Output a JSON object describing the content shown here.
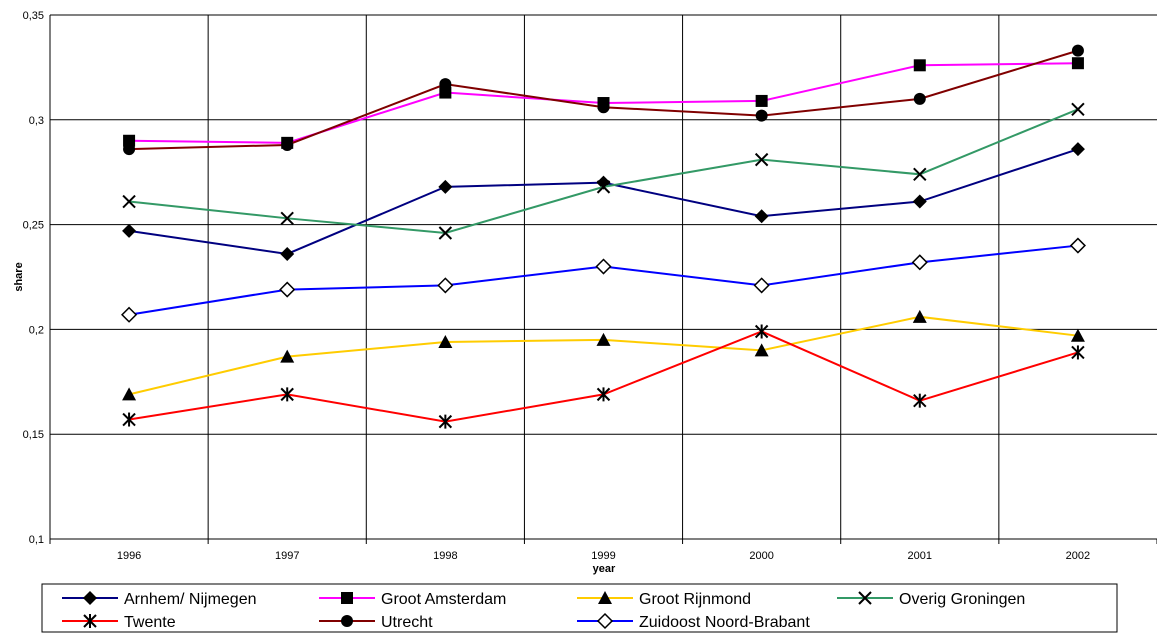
{
  "chart_data": {
    "type": "line",
    "xlabel": "year",
    "ylabel": "share",
    "categories": [
      "1996",
      "1997",
      "1998",
      "1999",
      "2000",
      "2001",
      "2002"
    ],
    "ylim": [
      0.1,
      0.35
    ],
    "yticks": [
      "0,1",
      "0,15",
      "0,2",
      "0,25",
      "0,3",
      "0,35"
    ],
    "ytick_values": [
      0.1,
      0.15,
      0.2,
      0.25,
      0.3,
      0.35
    ],
    "grid": true,
    "legend_position": "bottom",
    "series": [
      {
        "name": "Arnhem/ Nijmegen",
        "color": "#000080",
        "marker": "diamond-filled",
        "values": [
          0.247,
          0.236,
          0.268,
          0.27,
          0.254,
          0.261,
          0.286
        ]
      },
      {
        "name": "Groot Amsterdam",
        "color": "#FF00FF",
        "marker": "square-filled",
        "values": [
          0.29,
          0.289,
          0.313,
          0.308,
          0.309,
          0.326,
          0.327
        ]
      },
      {
        "name": "Groot Rijnmond",
        "color": "#FFCC00",
        "marker": "triangle-filled",
        "values": [
          0.169,
          0.187,
          0.194,
          0.195,
          0.19,
          0.206,
          0.197
        ]
      },
      {
        "name": "Overig Groningen",
        "color": "#339966",
        "marker": "x",
        "values": [
          0.261,
          0.253,
          0.246,
          0.268,
          0.281,
          0.274,
          0.305
        ]
      },
      {
        "name": "Twente",
        "color": "#FF0000",
        "marker": "asterisk",
        "values": [
          0.157,
          0.169,
          0.156,
          0.169,
          0.199,
          0.166,
          0.189
        ]
      },
      {
        "name": "Utrecht",
        "color": "#800000",
        "marker": "circle-filled",
        "values": [
          0.286,
          0.288,
          0.317,
          0.306,
          0.302,
          0.31,
          0.333
        ]
      },
      {
        "name": "Zuidoost Noord-Brabant",
        "color": "#0000FF",
        "marker": "diamond-open",
        "values": [
          0.207,
          0.219,
          0.221,
          0.23,
          0.221,
          0.232,
          0.24
        ]
      }
    ]
  }
}
